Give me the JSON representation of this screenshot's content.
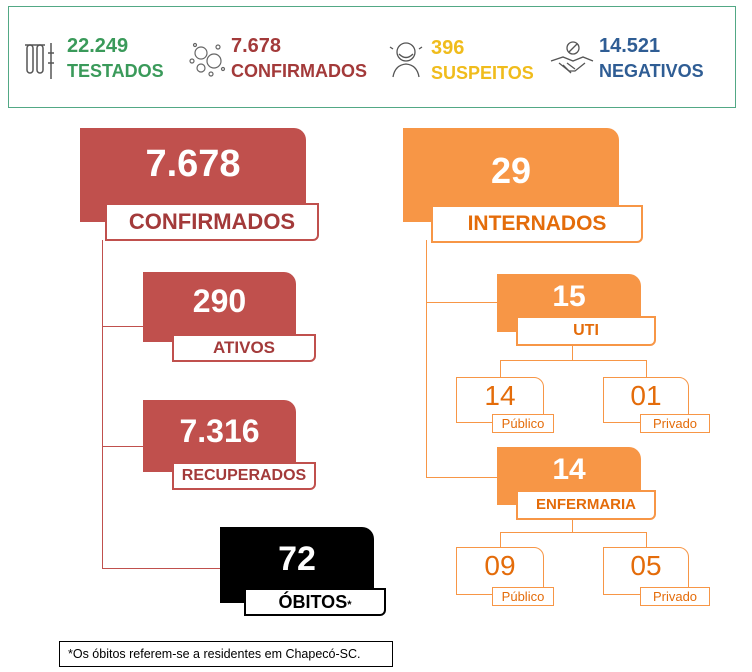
{
  "summary": {
    "tested": {
      "value": "22.249",
      "label": "TESTADOS",
      "icon": "test-tubes-icon"
    },
    "confirmed": {
      "value": "7.678",
      "label": "CONFIRMADOS",
      "icon": "virus-icon"
    },
    "suspected": {
      "value": "396",
      "label": "SUSPEITOS",
      "icon": "masked-person-icon"
    },
    "negative": {
      "value": "14.521",
      "label": "NEGATIVOS",
      "icon": "handshake-icon"
    }
  },
  "confirmed_tree": {
    "total": {
      "value": "7.678",
      "label": "CONFIRMADOS"
    },
    "active": {
      "value": "290",
      "label": "ATIVOS"
    },
    "recovered": {
      "value": "7.316",
      "label": "RECUPERADOS"
    },
    "deaths": {
      "value": "72",
      "label": "ÓBITOS",
      "marker": "*"
    }
  },
  "hospital_tree": {
    "total": {
      "value": "29",
      "label": "INTERNADOS"
    },
    "icu": {
      "value": "15",
      "label": "UTI",
      "public": {
        "value": "14",
        "label": "Público"
      },
      "private": {
        "value": "01",
        "label": "Privado"
      }
    },
    "ward": {
      "value": "14",
      "label": "ENFERMARIA",
      "public": {
        "value": "09",
        "label": "Público"
      },
      "private": {
        "value": "05",
        "label": "Privado"
      }
    }
  },
  "footnote": "*Os óbitos referem-se a residentes em Chapecó-SC.",
  "colors": {
    "red": "#c0504d",
    "orange": "#f79646",
    "green": "#3a9a5a",
    "yellow": "#f0bc1c",
    "blue": "#2f5d94"
  }
}
